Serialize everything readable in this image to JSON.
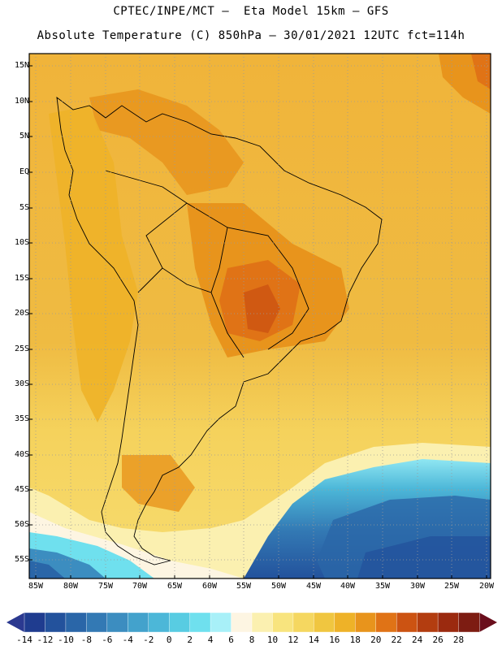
{
  "header": {
    "line1": "CPTEC/INPE/MCT –  Eta Model 15km – GFS",
    "line2": "Absolute Temperature (C) 850hPa – 30/01/2021 12UTC fct=114h"
  },
  "axes": {
    "latitudes": [
      "15N",
      "10N",
      "5N",
      "EQ",
      "5S",
      "10S",
      "15S",
      "20S",
      "25S",
      "30S",
      "35S",
      "40S",
      "45S",
      "50S",
      "55S"
    ],
    "longitudes": [
      "85W",
      "80W",
      "75W",
      "70W",
      "65W",
      "60W",
      "55W",
      "50W",
      "45W",
      "40W",
      "35W",
      "30W",
      "25W",
      "20W"
    ]
  },
  "colorbar": {
    "labels": [
      "-14",
      "-12",
      "-10",
      "-8",
      "-6",
      "-4",
      "-2",
      "0",
      "2",
      "4",
      "6",
      "8",
      "10",
      "12",
      "14",
      "16",
      "18",
      "20",
      "22",
      "24",
      "26",
      "28"
    ],
    "colors": [
      "#1f3c8f",
      "#23529c",
      "#2a66a8",
      "#3379b4",
      "#3c8dc0",
      "#43a2cc",
      "#4cb7d8",
      "#58cce2",
      "#6fe0ee",
      "#a8f0f8",
      "#fdf5e2",
      "#fbf0b0",
      "#f8e47e",
      "#f5d760",
      "#f0c640",
      "#eeb228",
      "#e8941c",
      "#e07316",
      "#cc5312",
      "#b33d10",
      "#9b2a0f",
      "#7d1c12"
    ],
    "low_cap_color": "#2b3990",
    "high_cap_color": "#6a0e1c"
  }
}
